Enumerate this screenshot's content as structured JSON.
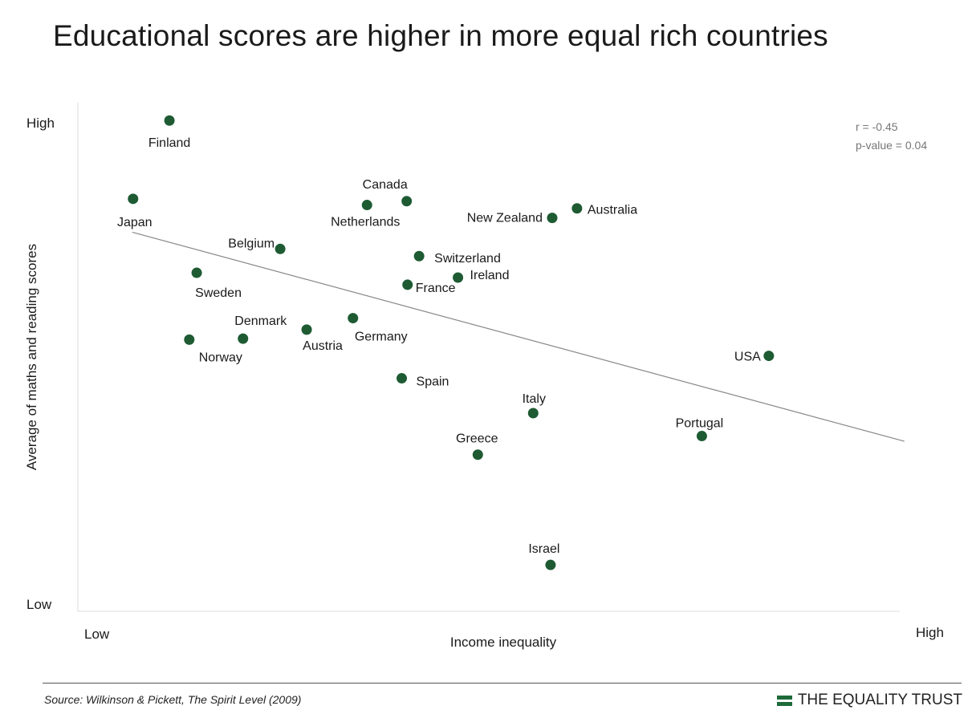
{
  "title": "Educational scores are higher in more equal rich countries",
  "source": "Source: Wilkinson & Pickett, The Spirit Level (2009)",
  "brand": {
    "name": "THE EQUALITY TRUST",
    "logo_icon": "equals-bars-icon",
    "color": "#1e6b3a"
  },
  "chart_data": {
    "type": "scatter",
    "title": "Educational scores are higher in more equal rich countries",
    "xlabel": "Income inequality",
    "ylabel": "Average of maths and reading scores",
    "xlim": [
      0,
      100
    ],
    "ylim": [
      0,
      100
    ],
    "x_tick_labels": {
      "low": "Low",
      "high": "High"
    },
    "y_tick_labels": {
      "low": "Low",
      "high": "High"
    },
    "annotation": [
      "r = -0.45",
      "p-value = 0.04"
    ],
    "point_color": "#1e5b33",
    "trendline": {
      "x": [
        5.8,
        99.2
      ],
      "y": [
        77.4,
        33.6
      ],
      "color": "#888888"
    },
    "grid": false,
    "points": [
      {
        "label": "Finland",
        "x": 10.3,
        "y": 100.8
      },
      {
        "label": "Japan",
        "x": 5.9,
        "y": 84.4
      },
      {
        "label": "Canada",
        "x": 39.0,
        "y": 83.9
      },
      {
        "label": "Netherlands",
        "x": 34.2,
        "y": 83.1
      },
      {
        "label": "Australia",
        "x": 59.6,
        "y": 82.4
      },
      {
        "label": "New Zealand",
        "x": 56.6,
        "y": 80.4
      },
      {
        "label": "Belgium",
        "x": 23.7,
        "y": 73.9
      },
      {
        "label": "Switzerland",
        "x": 40.5,
        "y": 72.4
      },
      {
        "label": "Sweden",
        "x": 13.6,
        "y": 68.9
      },
      {
        "label": "Ireland",
        "x": 45.2,
        "y": 67.9
      },
      {
        "label": "France",
        "x": 39.1,
        "y": 66.4
      },
      {
        "label": "Germany",
        "x": 32.5,
        "y": 59.4
      },
      {
        "label": "Austria",
        "x": 26.9,
        "y": 57.0
      },
      {
        "label": "Denmark",
        "x": 19.2,
        "y": 55.1
      },
      {
        "label": "Norway",
        "x": 12.7,
        "y": 54.9
      },
      {
        "label": "USA",
        "x": 82.8,
        "y": 51.5
      },
      {
        "label": "Spain",
        "x": 38.4,
        "y": 46.8
      },
      {
        "label": "Italy",
        "x": 54.3,
        "y": 39.5
      },
      {
        "label": "Portugal",
        "x": 74.7,
        "y": 34.7
      },
      {
        "label": "Greece",
        "x": 47.6,
        "y": 30.8
      },
      {
        "label": "Israel",
        "x": 56.4,
        "y": 7.7
      }
    ]
  }
}
